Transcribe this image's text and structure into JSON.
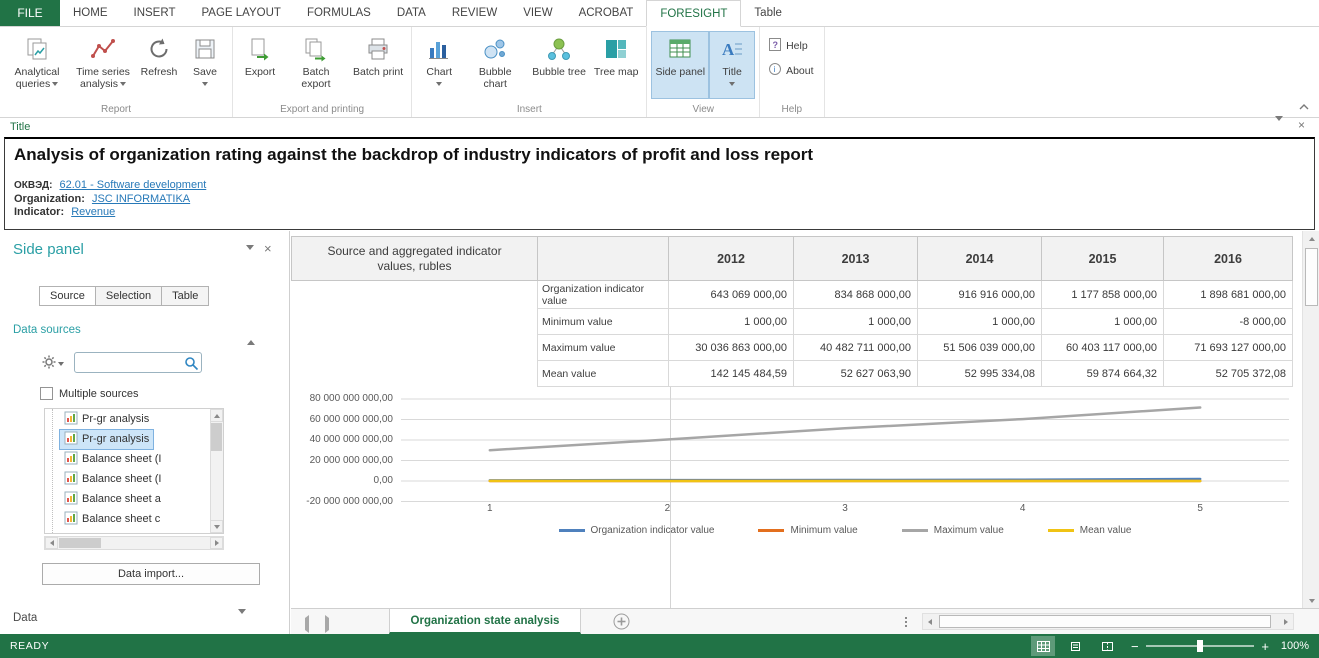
{
  "ribbon_tabs": {
    "file": "FILE",
    "items": [
      "HOME",
      "INSERT",
      "PAGE LAYOUT",
      "FORMULAS",
      "DATA",
      "REVIEW",
      "VIEW",
      "ACROBAT",
      "FORESIGHT",
      "Table"
    ],
    "active": "FORESIGHT"
  },
  "ribbon": {
    "groups": {
      "report": {
        "label": "Report",
        "analytical_queries": "Analytical queries",
        "time_series": "Time series analysis",
        "refresh": "Refresh",
        "save": "Save"
      },
      "export_printing": {
        "label": "Export and printing",
        "export": "Export",
        "batch_export": "Batch export",
        "batch_print": "Batch print"
      },
      "insert": {
        "label": "Insert",
        "chart": "Chart",
        "bubble_chart": "Bubble chart",
        "bubble_tree": "Bubble tree",
        "tree_map": "Tree map"
      },
      "view": {
        "label": "View",
        "side_panel": "Side panel",
        "title": "Title"
      },
      "help": {
        "label": "Help",
        "help": "Help",
        "about": "About"
      }
    }
  },
  "title_pane": {
    "pane_label": "Title",
    "heading": "Analysis of organization rating against the backdrop of industry indicators of profit and loss report",
    "okved_label": "ОКВЭД:",
    "okved_link": "62.01 - Software development",
    "organization_label": "Organization:",
    "organization_link": "JSC INFORMATIKA",
    "indicator_label": "Indicator:",
    "indicator_link": "Revenue"
  },
  "side_panel": {
    "title": "Side panel",
    "tabs": [
      "Source",
      "Selection",
      "Table"
    ],
    "active_tab": "Source",
    "data_sources_label": "Data sources",
    "search_value": "",
    "multiple_sources_label": "Multiple sources",
    "tree_items": [
      "Pr-gr analysis",
      "Pr-gr analysis",
      "Balance sheet (I",
      "Balance sheet (I",
      "Balance sheet a",
      "Balance sheet c"
    ],
    "selected_index": 1,
    "data_import_button": "Data import...",
    "data_section_label": "Data"
  },
  "table": {
    "corner_header": "Source and aggregated indicator values, rubles",
    "years": [
      "2012",
      "2013",
      "2014",
      "2015",
      "2016"
    ],
    "rows": [
      {
        "label": "Organization indicator value",
        "values": [
          "643 069 000,00",
          "834 868 000,00",
          "916 916 000,00",
          "1 177 858 000,00",
          "1 898 681 000,00"
        ]
      },
      {
        "label": "Minimum value",
        "values": [
          "1 000,00",
          "1 000,00",
          "1 000,00",
          "1 000,00",
          "-8 000,00"
        ]
      },
      {
        "label": "Maximum value",
        "values": [
          "30 036 863 000,00",
          "40 482 711 000,00",
          "51 506 039 000,00",
          "60 403 117 000,00",
          "71 693 127 000,00"
        ]
      },
      {
        "label": "Mean value",
        "values": [
          "142 145 484,59",
          "52 627 063,90",
          "52 995 334,08",
          "59 874 664,32",
          "52 705 372,08"
        ]
      }
    ]
  },
  "chart_data": {
    "type": "line",
    "x": [
      1,
      2,
      3,
      4,
      5
    ],
    "x_labels": [
      "1",
      "2",
      "3",
      "4",
      "5"
    ],
    "series": [
      {
        "name": "Organization indicator value",
        "color": "#4f81bd",
        "values": [
          643069000,
          834868000,
          916916000,
          1177858000,
          1898681000
        ]
      },
      {
        "name": "Minimum value",
        "color": "#e36f1e",
        "values": [
          1000,
          1000,
          1000,
          1000,
          -8000
        ]
      },
      {
        "name": "Maximum value",
        "color": "#a6a6a6",
        "values": [
          30036863000,
          40482711000,
          51506039000,
          60403117000,
          71693127000
        ]
      },
      {
        "name": "Mean value",
        "color": "#f0c314",
        "values": [
          142145484.59,
          52627063.9,
          52995334.08,
          59874664.32,
          52705372.08
        ]
      }
    ],
    "ylim": [
      -20000000000,
      80000000000
    ],
    "ytick_labels": [
      "80 000 000 000,00",
      "60 000 000 000,00",
      "40 000 000 000,00",
      "20 000 000 000,00",
      "0,00",
      "-20 000 000 000,00"
    ],
    "grid": true,
    "legend_position": "bottom"
  },
  "sheet_tabs": {
    "active": "Organization state analysis"
  },
  "status_bar": {
    "ready": "READY",
    "zoom_level": "100%"
  },
  "icons": {
    "search": "magnifier",
    "gear": "gear",
    "close": "×",
    "collapse": "▾",
    "new_sheet": "circled-plus"
  }
}
